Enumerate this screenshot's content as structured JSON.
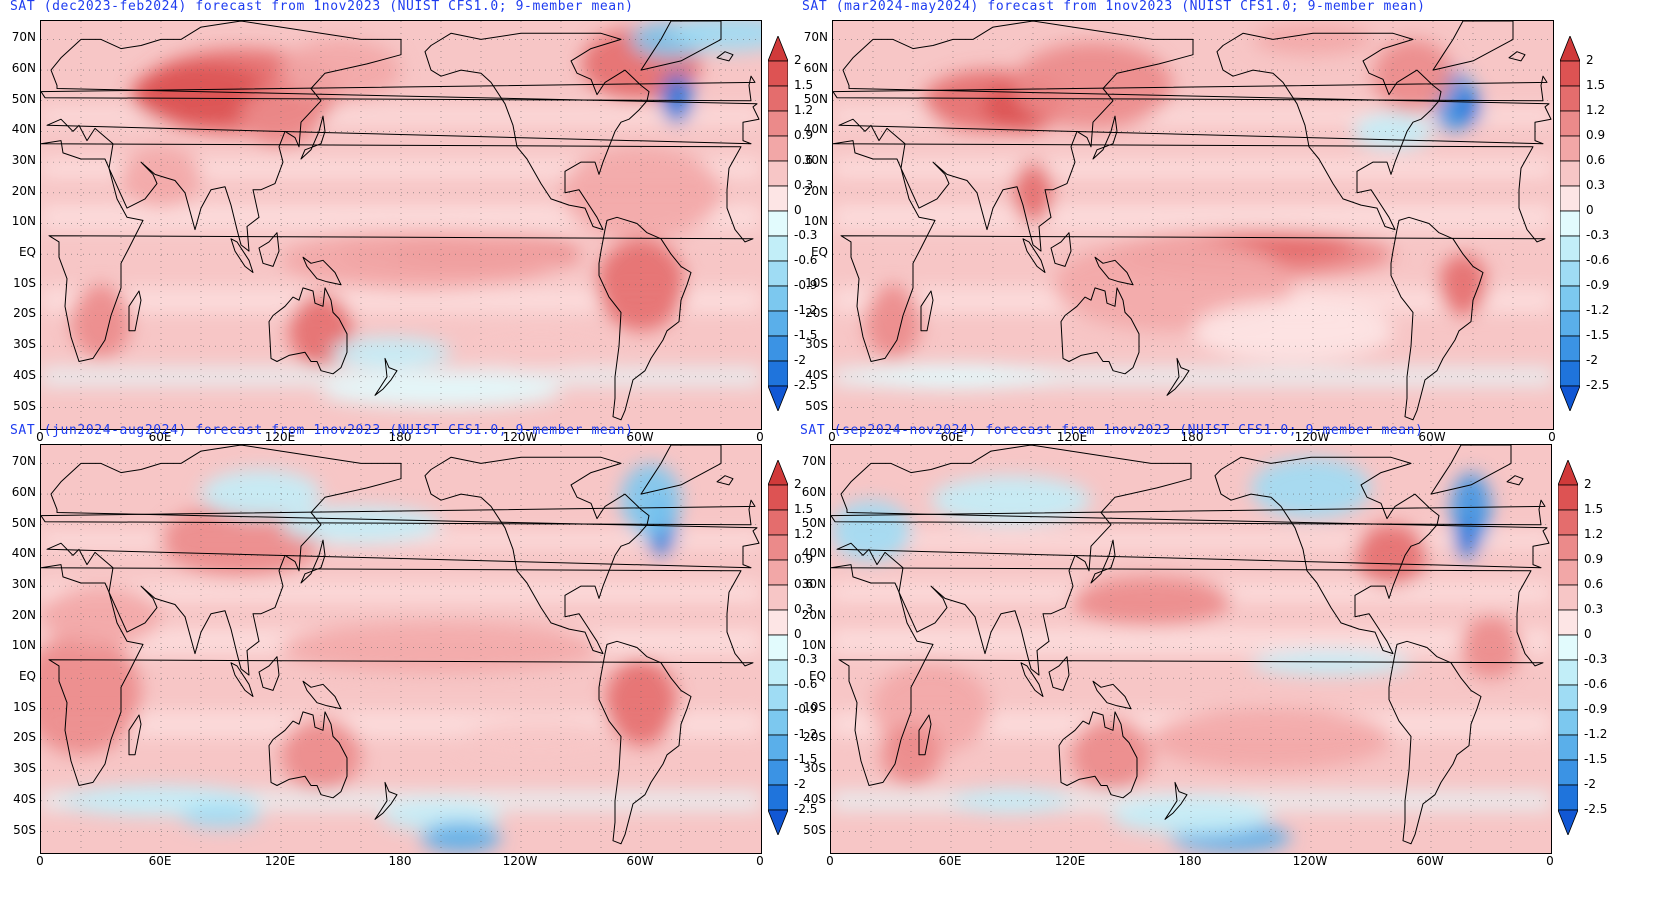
{
  "colorbar": {
    "labels": [
      "2",
      "1.5",
      "1.2",
      "0.9",
      "0.6",
      "0.3",
      "0",
      "-0.3",
      "-0.6",
      "-0.9",
      "-1.2",
      "-1.5",
      "-2",
      "-2.5"
    ],
    "colors": [
      "#d03a3a",
      "#dd5353",
      "#e46d6d",
      "#eb8a8a",
      "#f2a7a7",
      "#f7c6c6",
      "#fde5e5",
      "#e2fbfd",
      "#c2eef8",
      "#9fdcf4",
      "#7cc8ef",
      "#5aafea",
      "#3b93e4",
      "#1f74dc",
      "#1157d4"
    ]
  },
  "lat_labels": [
    "70N",
    "60N",
    "50N",
    "40N",
    "30N",
    "20N",
    "10N",
    "EQ",
    "10S",
    "20S",
    "30S",
    "40S",
    "50S"
  ],
  "lon_labels": [
    "0",
    "60E",
    "120E",
    "180",
    "120W",
    "60W",
    "0"
  ],
  "panels": [
    {
      "title": "SAT (dec2023-feb2024) forecast from 1nov2023 (NUIST CFS1.0; 9-member mean)"
    },
    {
      "title": "SAT (mar2024-may2024) forecast from 1nov2023 (NUIST CFS1.0; 9-member mean)"
    },
    {
      "title": "SAT (jun2024-aug2024) forecast from 1nov2023 (NUIST CFS1.0; 9-member mean)"
    },
    {
      "title": "SAT (sep2024-nov2024) forecast from 1nov2023 (NUIST CFS1.0; 9-member mean)"
    }
  ]
}
